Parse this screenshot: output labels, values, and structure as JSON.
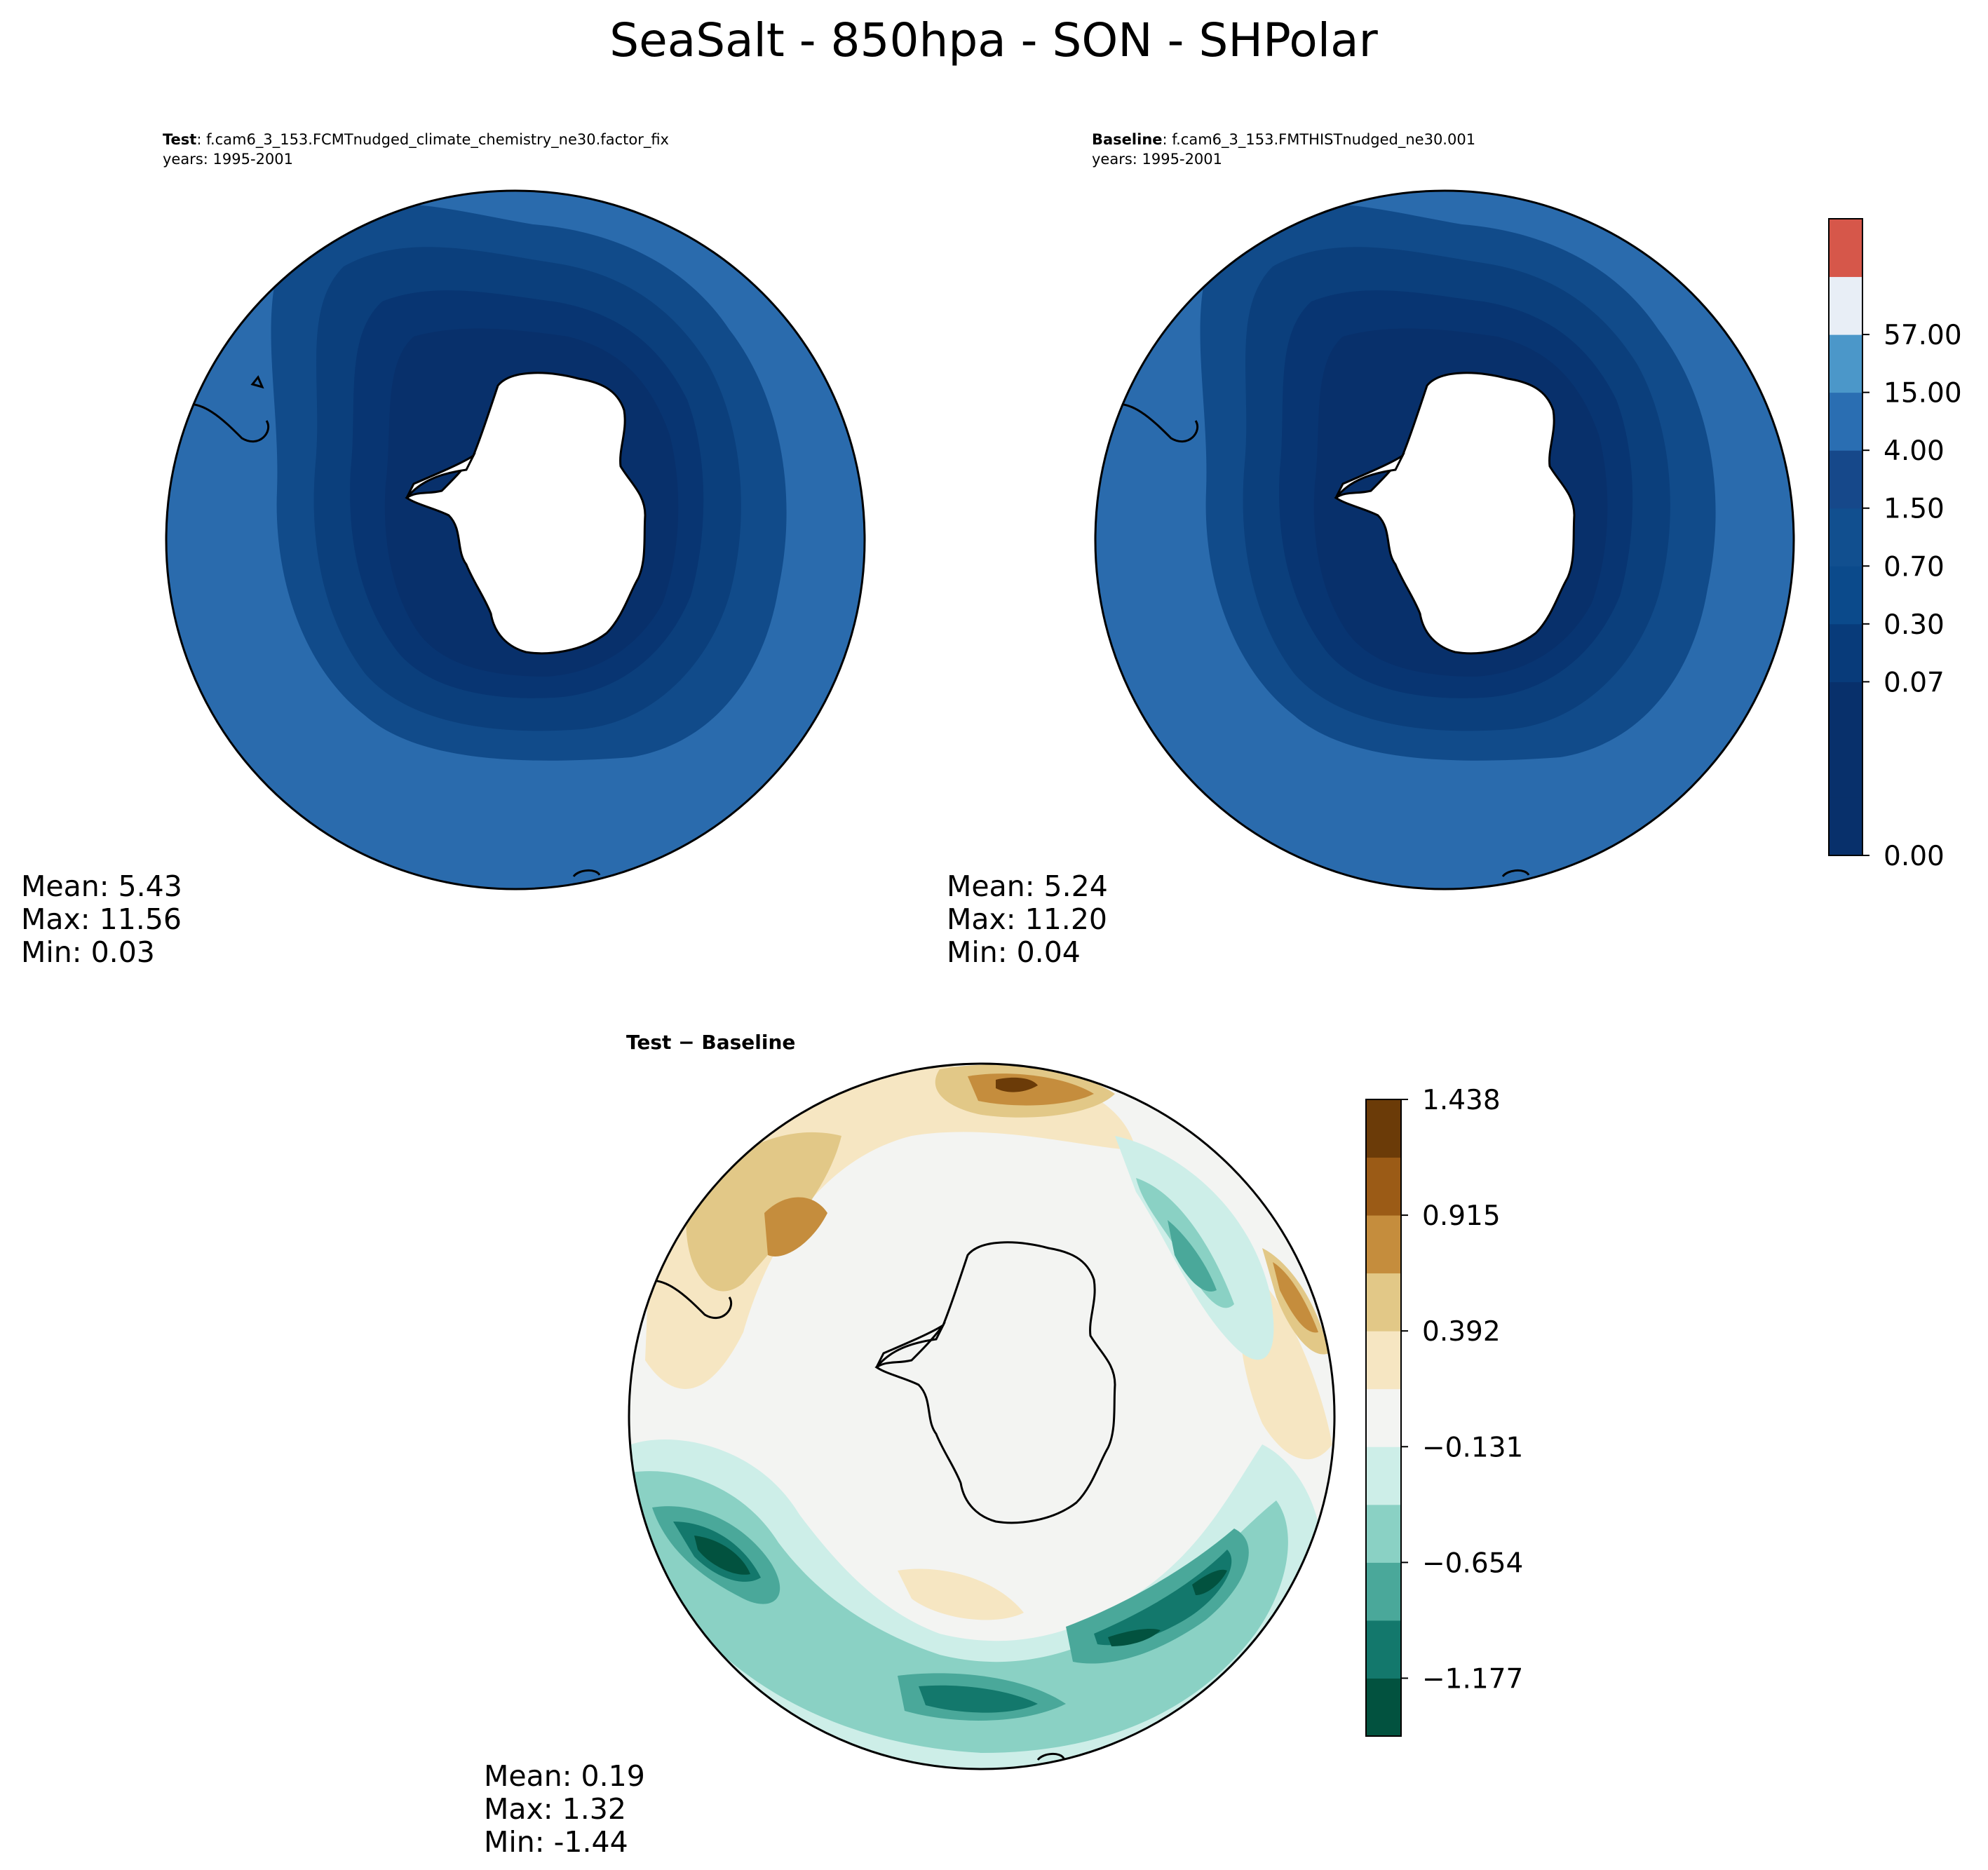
{
  "figure": {
    "title": "SeaSalt - 850hpa - SON - SHPolar"
  },
  "panels": {
    "test": {
      "label": "Test",
      "case_name": ": f.cam6_3_153.FCMTnudged_climate_chemistry_ne30.factor_fix",
      "years": "years: 1995-2001",
      "stats": {
        "mean": "Mean:  5.43",
        "max": "Max: 11.56",
        "min": "Min:  0.03"
      }
    },
    "baseline": {
      "label": "Baseline",
      "case_name": ": f.cam6_3_153.FMTHISTnudged_ne30.001",
      "years": "years: 1995-2001",
      "stats": {
        "mean": "Mean:  5.24",
        "max": "Max: 11.20",
        "min": "Min:  0.04"
      }
    },
    "diff": {
      "title_a": "Test",
      "title_sep": " − ",
      "title_b": "Baseline",
      "stats": {
        "mean": "Mean:  0.19",
        "max": "Max:  1.32",
        "min": "Min: -1.44"
      }
    }
  },
  "colorbars": {
    "main": {
      "ticks": [
        "57.00",
        "15.00",
        "4.00",
        "1.50",
        "0.70",
        "0.30",
        "0.07",
        "0.00"
      ],
      "colors": [
        "#08306b",
        "#08306b",
        "#08306b",
        "#083b7a",
        "#0b4a8b",
        "#114f8f",
        "#16488a",
        "#2a6eb2",
        "#4b97c9",
        "#e8eef6",
        "#d6574a"
      ]
    },
    "diff": {
      "ticks": [
        "1.438",
        "0.915",
        "0.392",
        "−0.131",
        "−0.654",
        "−1.177"
      ],
      "colors": [
        "#02523f",
        "#13786c",
        "#4aa89a",
        "#8ad1c4",
        "#cdeee8",
        "#f3f4f2",
        "#f6e6c2",
        "#e2c887",
        "#c58d3d",
        "#9b5b16",
        "#6b3b08"
      ]
    }
  },
  "map_colors": {
    "ocean_outer": "#2a6bad",
    "ring_1": "#114b8a",
    "ring_2": "#0b3f7c",
    "ring_3": "#083572",
    "inner": "#08306b",
    "land": "#ffffff",
    "coast": "#000000"
  }
}
